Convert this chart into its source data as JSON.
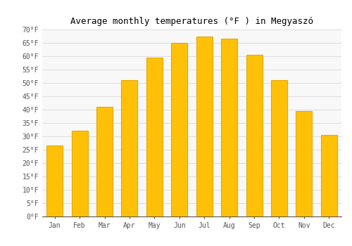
{
  "title": "Average monthly temperatures (°F ) in Megyaszó",
  "months": [
    "Jan",
    "Feb",
    "Mar",
    "Apr",
    "May",
    "Jun",
    "Jul",
    "Aug",
    "Sep",
    "Oct",
    "Nov",
    "Dec"
  ],
  "values": [
    26.5,
    32.0,
    41.0,
    51.0,
    59.5,
    65.0,
    67.5,
    66.5,
    60.5,
    51.0,
    39.5,
    30.5
  ],
  "bar_color": "#FFC107",
  "bar_edge_color": "#E6A800",
  "ylim": [
    0,
    70
  ],
  "yticks": [
    0,
    5,
    10,
    15,
    20,
    25,
    30,
    35,
    40,
    45,
    50,
    55,
    60,
    65,
    70
  ],
  "ytick_labels": [
    "0°F",
    "5°F",
    "10°F",
    "15°F",
    "20°F",
    "25°F",
    "30°F",
    "35°F",
    "40°F",
    "45°F",
    "50°F",
    "55°F",
    "60°F",
    "65°F",
    "70°F"
  ],
  "bg_color": "#ffffff",
  "plot_bg_color": "#f8f8f8",
  "grid_color": "#dddddd",
  "title_fontsize": 9,
  "tick_fontsize": 7,
  "font_family": "monospace"
}
